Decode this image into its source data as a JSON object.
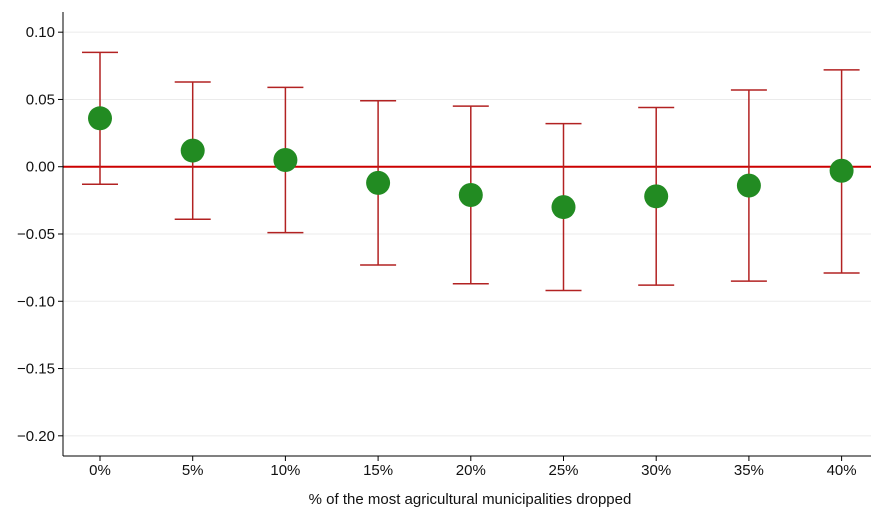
{
  "chart_data": {
    "type": "scatter",
    "subtype": "point estimates with confidence intervals",
    "title": "",
    "xlabel": "% of the most agricultural municipalities dropped",
    "ylabel": "",
    "categories": [
      "0%",
      "5%",
      "10%",
      "15%",
      "20%",
      "25%",
      "30%",
      "35%",
      "40%"
    ],
    "series": [
      {
        "estimate": [
          0.036,
          0.012,
          0.005,
          -0.012,
          -0.021,
          -0.03,
          -0.022,
          -0.014,
          -0.003
        ],
        "ci_lower": [
          -0.013,
          -0.039,
          -0.049,
          -0.073,
          -0.087,
          -0.092,
          -0.088,
          -0.085,
          -0.079
        ],
        "ci_upper": [
          0.085,
          0.063,
          0.059,
          0.049,
          0.045,
          0.032,
          0.044,
          0.057,
          0.072
        ]
      }
    ],
    "ylim": [
      -0.215,
      0.115
    ],
    "yticks": [
      0.1,
      0.05,
      0.0,
      -0.05,
      -0.1,
      -0.15,
      -0.2
    ],
    "ytick_labels": [
      "0.10",
      "0.05",
      "0.00",
      "−0.05",
      "−0.10",
      "−0.15",
      "−0.20"
    ],
    "reference_line": 0,
    "grid": "horizontal",
    "colors": {
      "point": "#228B22",
      "errorbar": "#B22222",
      "reference_line": "#CC0000",
      "grid": "#EBEBEB",
      "axis": "#000000"
    }
  }
}
